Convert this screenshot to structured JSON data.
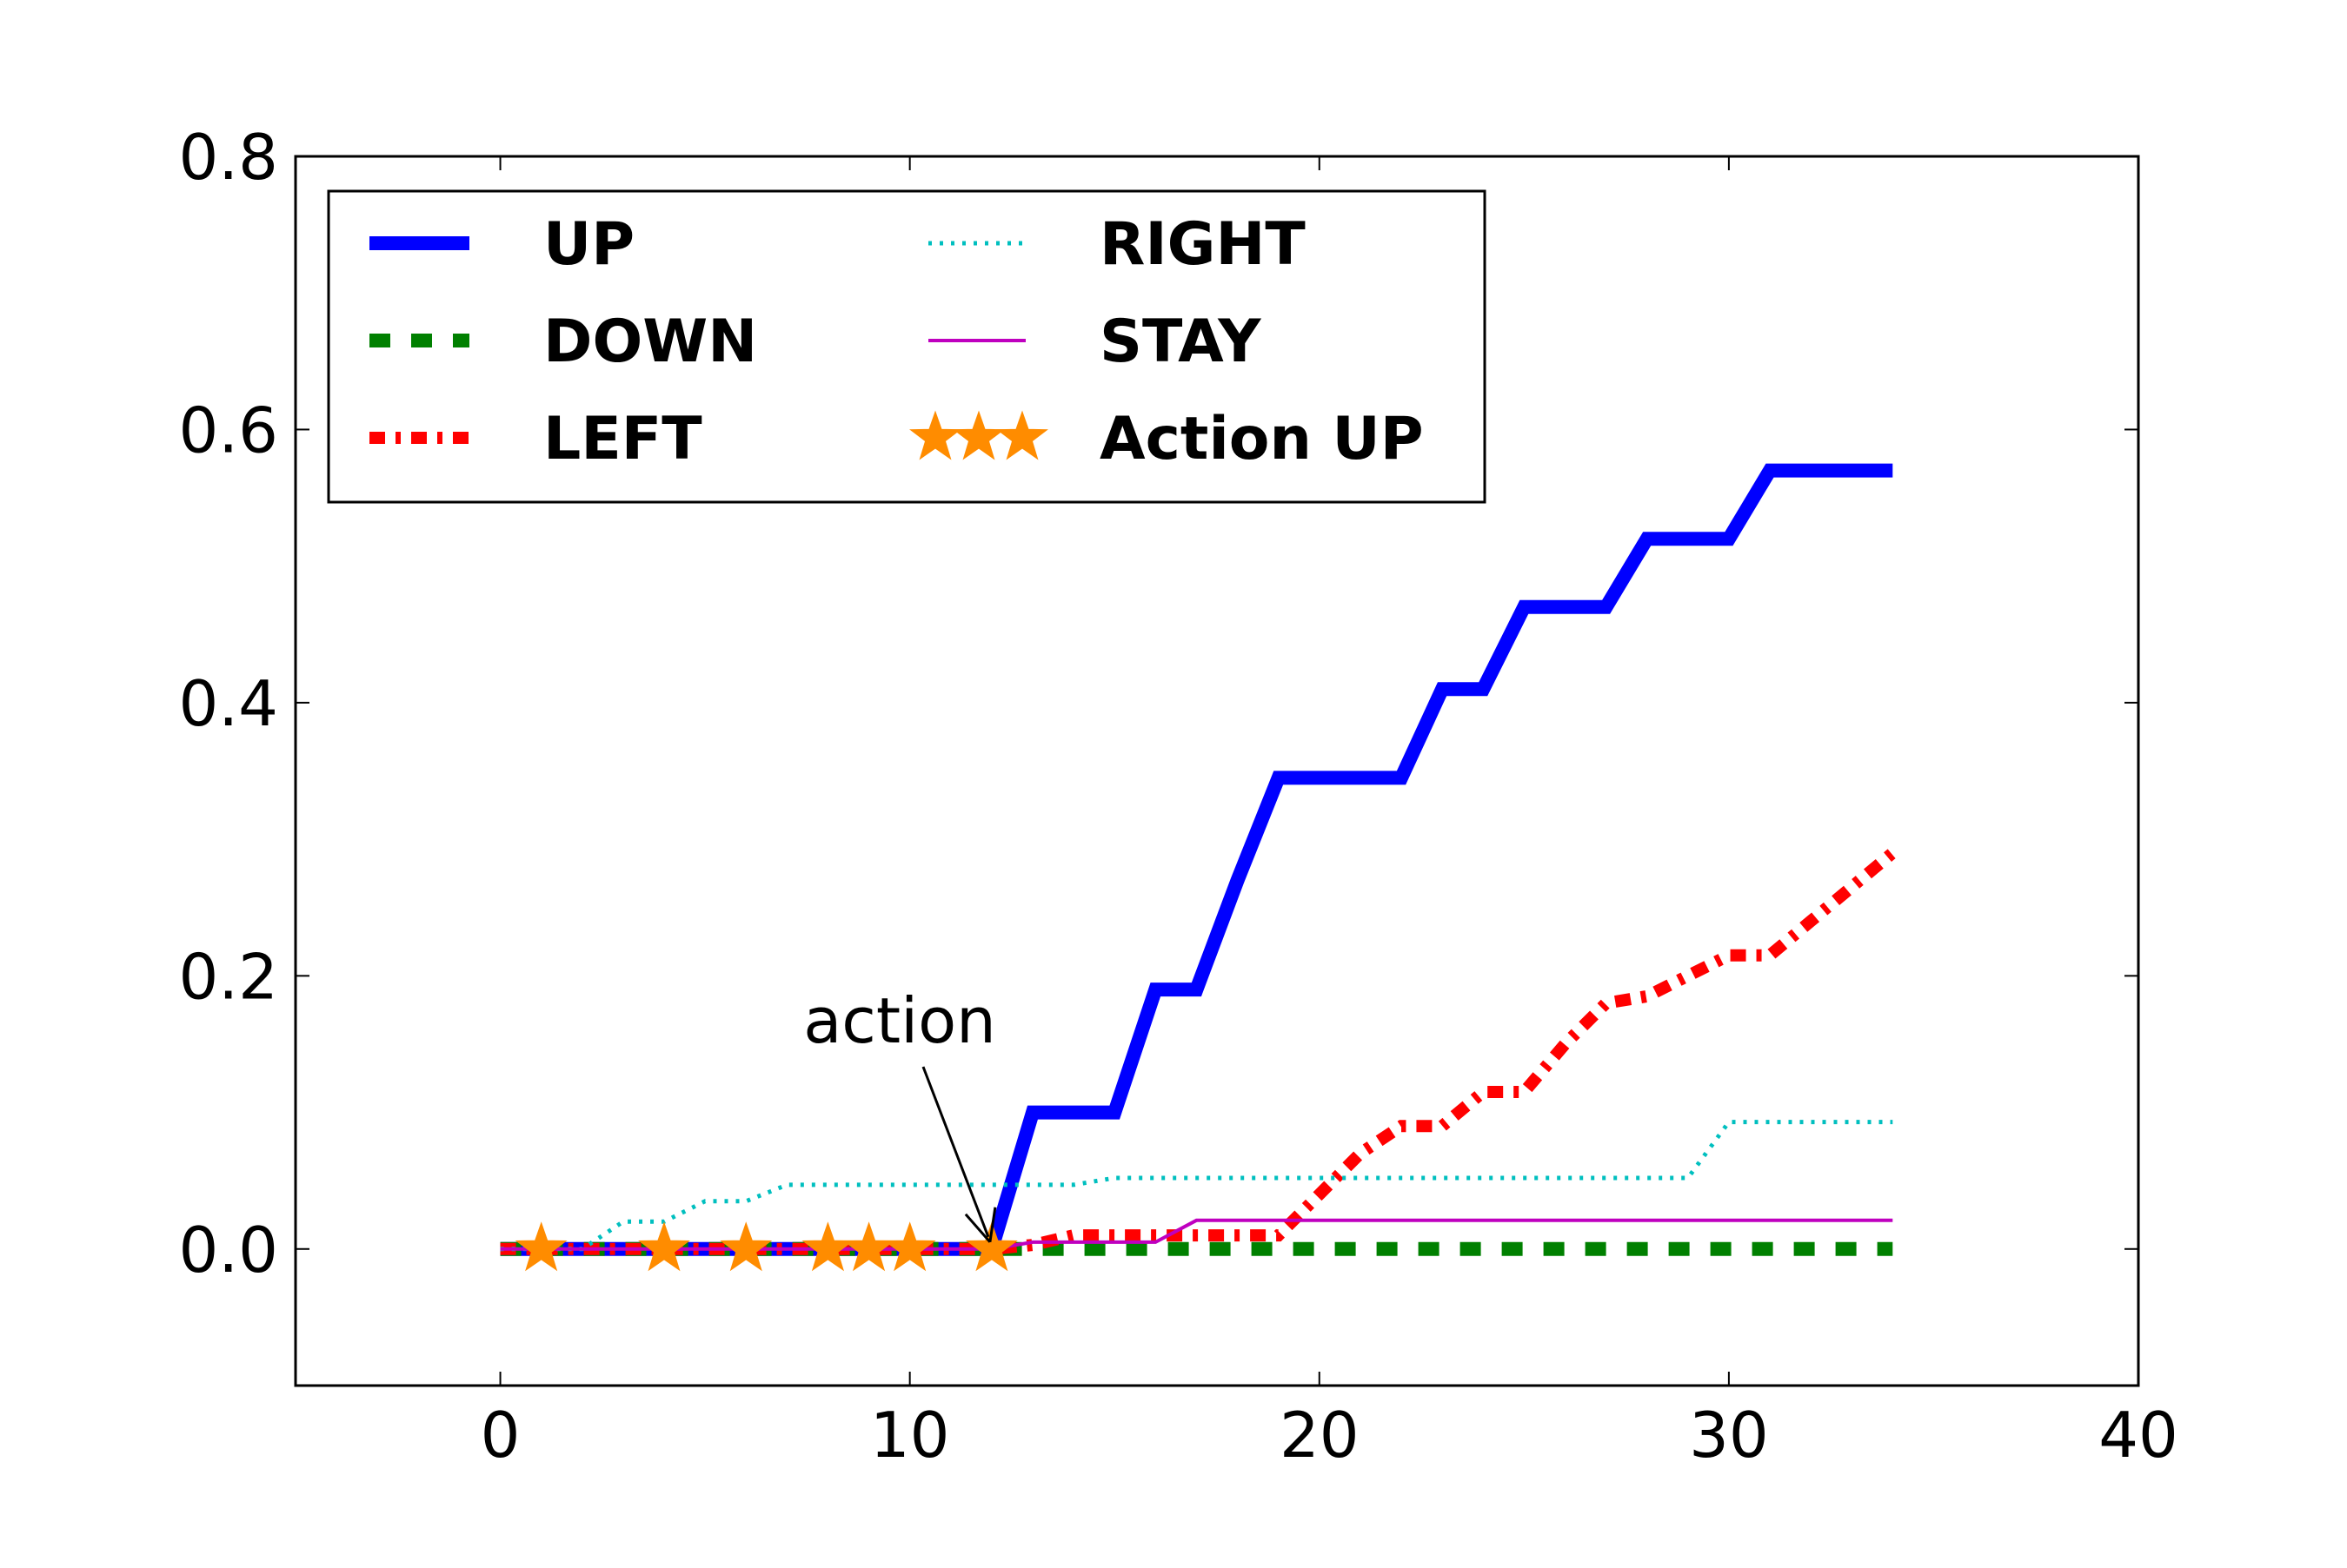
{
  "chart_data": {
    "type": "line",
    "title": "",
    "xlabel": "",
    "ylabel": "",
    "xlim": [
      -5,
      40
    ],
    "ylim": [
      -0.1,
      0.8
    ],
    "xticks": [
      0,
      10,
      20,
      30,
      40
    ],
    "yticks": [
      0.0,
      0.2,
      0.4,
      0.6,
      0.8
    ],
    "xtick_labels": [
      "0",
      "10",
      "20",
      "30",
      "40"
    ],
    "ytick_labels": [
      "0.0",
      "0.2",
      "0.4",
      "0.6",
      "0.8"
    ],
    "grid": false,
    "legend_placement": "top-left",
    "legend_columns": 2,
    "x": [
      0,
      1,
      2,
      3,
      4,
      5,
      6,
      7,
      8,
      9,
      10,
      11,
      12,
      13,
      14,
      15,
      16,
      17,
      18,
      19,
      20,
      21,
      22,
      23,
      24,
      25,
      26,
      27,
      28,
      29,
      30,
      31,
      32,
      33,
      34
    ],
    "series": [
      {
        "name": "UP",
        "color": "#0000ff",
        "style": "solid-thick",
        "values": [
          0,
          0,
          0,
          0,
          0,
          0,
          0,
          0,
          0,
          0,
          0,
          0,
          0,
          0.1,
          0.1,
          0.1,
          0.19,
          0.19,
          0.27,
          0.345,
          0.345,
          0.345,
          0.345,
          0.41,
          0.41,
          0.47,
          0.47,
          0.47,
          0.52,
          0.52,
          0.52,
          0.57,
          0.57,
          0.57,
          0.57
        ]
      },
      {
        "name": "DOWN",
        "color": "#008000",
        "style": "dashed",
        "values": [
          0,
          0,
          0,
          0,
          0,
          0,
          0,
          0,
          0,
          0,
          0,
          0,
          0,
          0,
          0,
          0,
          0,
          0,
          0,
          0,
          0,
          0,
          0,
          0,
          0,
          0,
          0,
          0,
          0,
          0,
          0,
          0,
          0,
          0,
          0
        ]
      },
      {
        "name": "LEFT",
        "color": "#ff0000",
        "style": "dashdot",
        "values": [
          0,
          0,
          0,
          0,
          0,
          0,
          0,
          0,
          0,
          0,
          0,
          0,
          0,
          0.003,
          0.01,
          0.01,
          0.01,
          0.01,
          0.01,
          0.01,
          0.04,
          0.07,
          0.09,
          0.09,
          0.115,
          0.115,
          0.15,
          0.18,
          0.185,
          0.2,
          0.215,
          0.215,
          0.24,
          0.265,
          0.29
        ]
      },
      {
        "name": "RIGHT",
        "color": "#00bfbf",
        "style": "dotted",
        "values": [
          0,
          0,
          0,
          0.02,
          0.02,
          0.035,
          0.035,
          0.047,
          0.047,
          0.047,
          0.047,
          0.047,
          0.047,
          0.047,
          0.047,
          0.052,
          0.052,
          0.052,
          0.052,
          0.052,
          0.052,
          0.052,
          0.052,
          0.052,
          0.052,
          0.052,
          0.052,
          0.052,
          0.052,
          0.052,
          0.093,
          0.093,
          0.093,
          0.093,
          0.093
        ]
      },
      {
        "name": "STAY",
        "color": "#bf00bf",
        "style": "solid-thin",
        "values": [
          0,
          0,
          0,
          0,
          0,
          0,
          0,
          0,
          0,
          0,
          0,
          0,
          0,
          0.005,
          0.005,
          0.005,
          0.005,
          0.021,
          0.021,
          0.021,
          0.021,
          0.021,
          0.021,
          0.021,
          0.021,
          0.021,
          0.021,
          0.021,
          0.021,
          0.021,
          0.021,
          0.021,
          0.021,
          0.021,
          0.021
        ]
      }
    ],
    "markers": {
      "name": "Action UP",
      "color": "#ff8c00",
      "shape": "star",
      "x": [
        1,
        4,
        6,
        8,
        9,
        10,
        12
      ],
      "y": [
        0,
        0,
        0,
        0,
        0,
        0,
        0
      ]
    },
    "annotation": {
      "text": "action",
      "target": [
        12,
        0
      ]
    }
  }
}
